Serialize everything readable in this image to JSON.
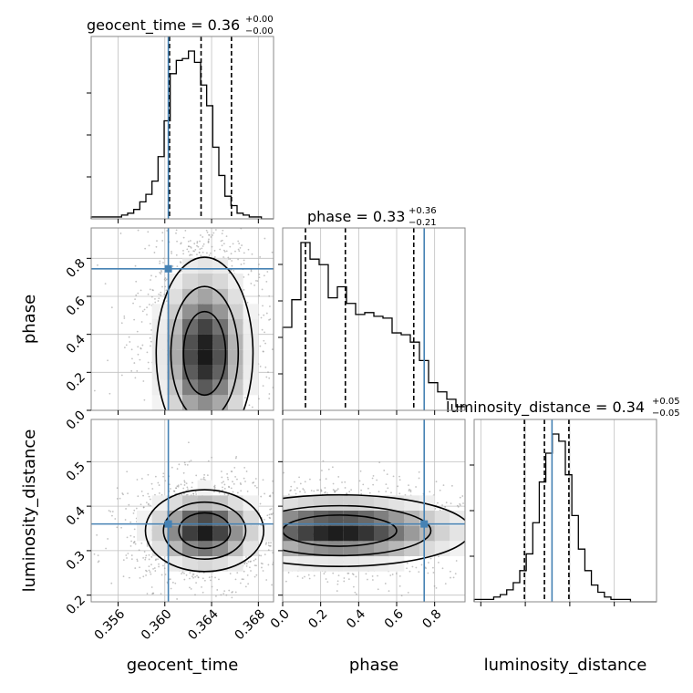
{
  "colors": {
    "truth": "#4682b4",
    "hist": "#000000",
    "grid": "#c0c0c0"
  },
  "chart_data": {
    "type": "corner",
    "parameters": [
      "geocent_time",
      "phase",
      "luminosity_distance"
    ],
    "axis_labels": [
      "geocent_time",
      "phase",
      "luminosity_distance"
    ],
    "truths": {
      "geocent_time": 0.3603,
      "phase": 0.745,
      "luminosity_distance": 0.36
    },
    "ranges": {
      "geocent_time": [
        0.3537,
        0.3693
      ],
      "phase": [
        0.0,
        0.96
      ],
      "luminosity_distance": [
        0.185,
        0.595
      ]
    },
    "ticks": {
      "geocent_time": {
        "values": [
          0.356,
          0.36,
          0.364,
          0.368
        ],
        "labels": [
          "0.356",
          "0.360",
          "0.364",
          "0.368"
        ]
      },
      "phase": {
        "values": [
          0.0,
          0.2,
          0.4,
          0.6,
          0.8
        ],
        "labels": [
          "0.0",
          "0.2",
          "0.4",
          "0.6",
          "0.8"
        ]
      },
      "luminosity_distance": {
        "values": [
          0.2,
          0.3,
          0.4,
          0.5
        ],
        "labels": [
          "0.2",
          "0.3",
          "0.4",
          "0.5"
        ]
      }
    },
    "titles": {
      "geocent_time": {
        "text": "geocent_time = 0.36",
        "plus": "+0.00",
        "minus": "−0.00"
      },
      "phase": {
        "text": "phase = 0.33",
        "plus": "+0.36",
        "minus": "−0.21"
      },
      "luminosity_distance": {
        "text": "luminosity_distance = 0.34",
        "plus": "+0.05",
        "minus": "−0.05"
      }
    },
    "histograms": {
      "geocent_time": {
        "quantiles": [
          0.3604,
          0.3631,
          0.3657
        ],
        "counts": [
          1,
          1,
          1,
          1,
          1,
          2,
          3,
          5,
          9,
          13,
          20,
          33,
          52,
          77,
          84,
          85,
          89,
          83,
          71,
          60,
          38,
          23,
          12,
          7,
          3,
          2,
          1,
          1,
          0,
          0
        ]
      },
      "phase": {
        "quantiles": [
          0.12,
          0.33,
          0.69
        ],
        "counts": [
          45,
          60,
          91,
          82,
          79,
          61,
          67,
          58,
          52,
          53,
          51,
          50,
          42,
          41,
          37,
          27,
          15,
          10,
          6,
          2
        ]
      },
      "luminosity_distance": {
        "quantiles": [
          0.298,
          0.343,
          0.398
        ],
        "counts": [
          1,
          1,
          1,
          2,
          3,
          5,
          8,
          13,
          20,
          33,
          50,
          62,
          70,
          67,
          53,
          36,
          22,
          13,
          7,
          4,
          2,
          1,
          1,
          1,
          0,
          0,
          0,
          0
        ]
      }
    },
    "panels_2d": [
      {
        "x": "geocent_time",
        "y": "phase",
        "truth_point": [
          0.3603,
          0.745
        ]
      },
      {
        "x": "geocent_time",
        "y": "luminosity_distance",
        "truth_point": [
          0.3603,
          0.36
        ]
      },
      {
        "x": "phase",
        "y": "luminosity_distance",
        "truth_point": [
          0.745,
          0.36
        ]
      }
    ]
  }
}
